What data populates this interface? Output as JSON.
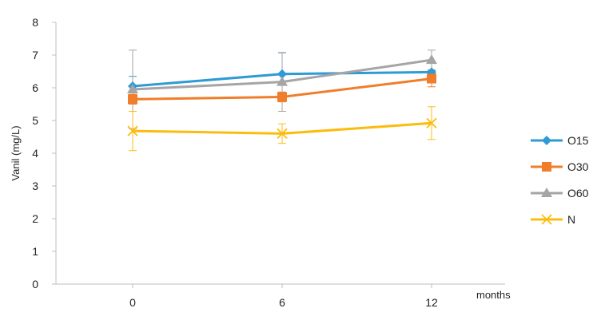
{
  "chart_data": {
    "type": "line",
    "title": "",
    "xlabel": "months",
    "ylabel": "Vanil (mg/L)",
    "x": [
      0,
      6,
      12
    ],
    "x_tick_labels": [
      "0",
      "6",
      "12"
    ],
    "ylim": [
      0,
      8
    ],
    "y_ticks": [
      0,
      1,
      2,
      3,
      4,
      5,
      6,
      7,
      8
    ],
    "grid": false,
    "legend_position": "right",
    "series": [
      {
        "name": "O15",
        "values": [
          6.05,
          6.42,
          6.48
        ],
        "errors": [
          0.3,
          0.65,
          0.05
        ],
        "color": "#2e9ad6",
        "marker": "diamond"
      },
      {
        "name": "O30",
        "values": [
          5.65,
          5.72,
          6.28
        ],
        "errors": [
          0.15,
          0.15,
          0.25
        ],
        "color": "#f07d2a",
        "marker": "square"
      },
      {
        "name": "O60",
        "values": [
          5.95,
          6.18,
          6.85
        ],
        "errors": [
          1.2,
          0.9,
          0.3
        ],
        "color": "#a5a5a5",
        "marker": "triangle"
      },
      {
        "name": "N",
        "values": [
          4.68,
          4.6,
          4.92
        ],
        "errors": [
          0.6,
          0.3,
          0.5
        ],
        "color": "#fcbc0e",
        "marker": "x"
      }
    ]
  }
}
